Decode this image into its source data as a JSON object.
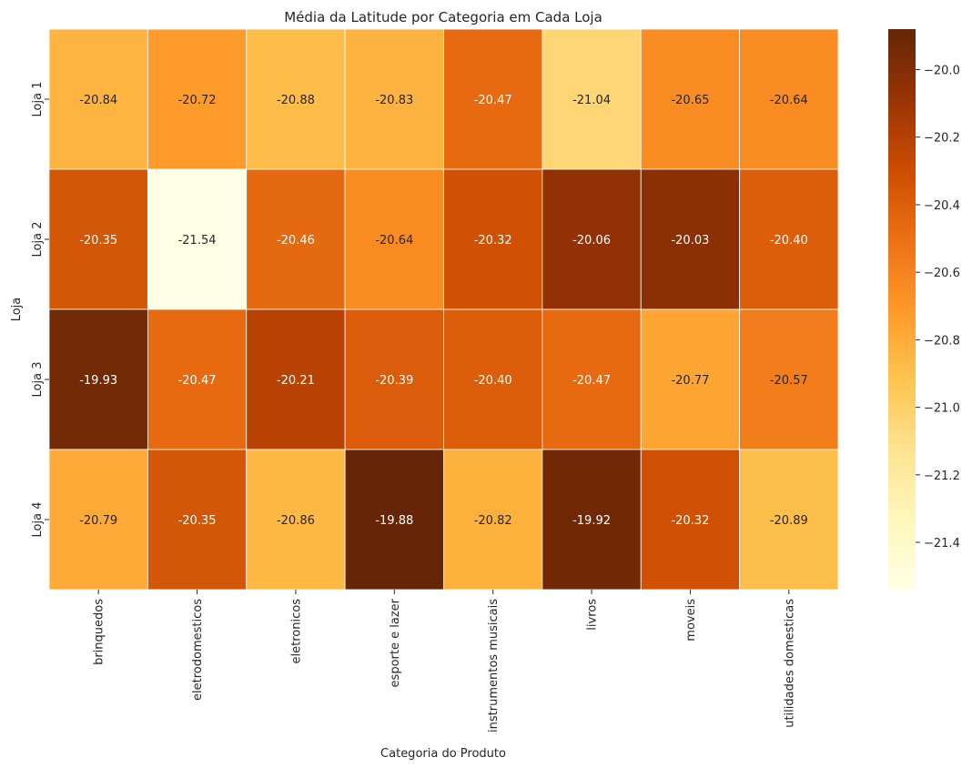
{
  "chart_data": {
    "type": "heatmap",
    "title": "Média da Latitude por Categoria em Cada Loja",
    "xlabel": "Categoria do Produto",
    "ylabel": "Loja",
    "columns": [
      "brinquedos",
      "eletrodomesticos",
      "eletronicos",
      "esporte e lazer",
      "instrumentos musicais",
      "livros",
      "moveis",
      "utilidades domesticas"
    ],
    "rows": [
      "Loja 1",
      "Loja 2",
      "Loja 3",
      "Loja 4"
    ],
    "values": [
      [
        -20.84,
        -20.72,
        -20.88,
        -20.83,
        -20.47,
        -21.04,
        -20.65,
        -20.64
      ],
      [
        -20.35,
        -21.54,
        -20.46,
        -20.64,
        -20.32,
        -20.06,
        -20.03,
        -20.4
      ],
      [
        -19.93,
        -20.47,
        -20.21,
        -20.39,
        -20.4,
        -20.47,
        -20.77,
        -20.57
      ],
      [
        -20.79,
        -20.35,
        -20.86,
        -19.88,
        -20.82,
        -19.92,
        -20.32,
        -20.89
      ]
    ],
    "labels": [
      [
        "-20.84",
        "-20.72",
        "-20.88",
        "-20.83",
        "-20.47",
        "-21.04",
        "-20.65",
        "-20.64"
      ],
      [
        "-20.35",
        "-21.54",
        "-20.46",
        "-20.64",
        "-20.32",
        "-20.06",
        "-20.03",
        "-20.40"
      ],
      [
        "-19.93",
        "-20.47",
        "-20.21",
        "-20.39",
        "-20.40",
        "-20.47",
        "-20.77",
        "-20.57"
      ],
      [
        "-20.79",
        "-20.35",
        "-20.86",
        "-19.88",
        "-20.82",
        "-19.92",
        "-20.32",
        "-20.89"
      ]
    ],
    "colormap": "YlOrBr",
    "vmin": -21.54,
    "vmax": -19.88,
    "colorbar": {
      "ticks": [
        -21.4,
        -21.2,
        -21.0,
        -20.8,
        -20.6,
        -20.4,
        -20.2,
        -20.0
      ],
      "tick_labels": [
        "−21.4",
        "−21.2",
        "−21.0",
        "−20.8",
        "−20.6",
        "−20.4",
        "−20.2",
        "−20.0"
      ]
    },
    "grid": false
  }
}
